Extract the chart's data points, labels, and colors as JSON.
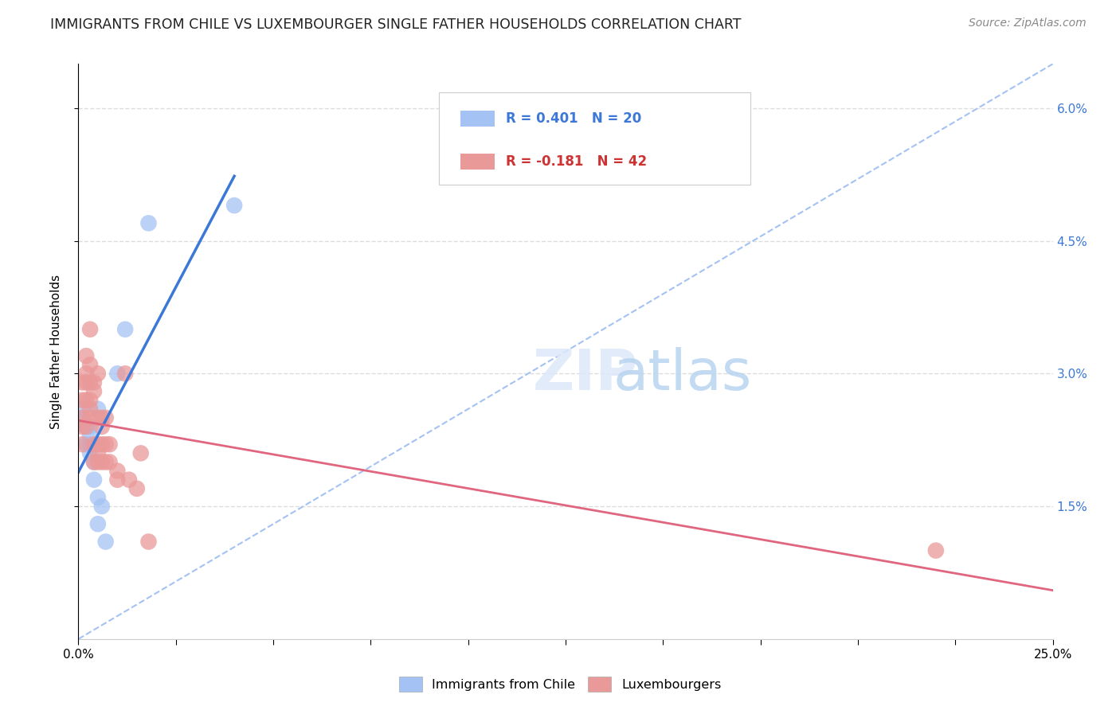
{
  "title": "IMMIGRANTS FROM CHILE VS LUXEMBOURGER SINGLE FATHER HOUSEHOLDS CORRELATION CHART",
  "source": "Source: ZipAtlas.com",
  "ylabel": "Single Father Households",
  "ylabel_right_ticks": [
    "1.5%",
    "3.0%",
    "4.5%",
    "6.0%"
  ],
  "ylabel_right_vals": [
    0.015,
    0.03,
    0.045,
    0.06
  ],
  "legend_blue_r": "R = 0.401",
  "legend_blue_n": "N = 20",
  "legend_pink_r": "R = -0.181",
  "legend_pink_n": "N = 42",
  "legend_label_blue": "Immigrants from Chile",
  "legend_label_pink": "Luxembourgers",
  "blue_color": "#a4c2f4",
  "pink_color": "#ea9999",
  "blue_line_color": "#3c78d8",
  "pink_line_color": "#e06680",
  "diagonal_color": "#a4c2f4",
  "blue_scatter_x": [
    0.001,
    0.001,
    0.002,
    0.002,
    0.002,
    0.003,
    0.003,
    0.003,
    0.003,
    0.004,
    0.004,
    0.005,
    0.005,
    0.005,
    0.006,
    0.007,
    0.01,
    0.012,
    0.018,
    0.04
  ],
  "blue_scatter_y": [
    0.026,
    0.025,
    0.024,
    0.024,
    0.022,
    0.024,
    0.023,
    0.021,
    0.022,
    0.02,
    0.018,
    0.026,
    0.016,
    0.013,
    0.015,
    0.011,
    0.03,
    0.035,
    0.047,
    0.049
  ],
  "pink_scatter_x": [
    0.001,
    0.001,
    0.001,
    0.001,
    0.001,
    0.002,
    0.002,
    0.002,
    0.002,
    0.002,
    0.003,
    0.003,
    0.003,
    0.003,
    0.003,
    0.003,
    0.004,
    0.004,
    0.004,
    0.004,
    0.005,
    0.005,
    0.005,
    0.005,
    0.005,
    0.006,
    0.006,
    0.006,
    0.006,
    0.007,
    0.007,
    0.007,
    0.008,
    0.008,
    0.01,
    0.01,
    0.012,
    0.013,
    0.015,
    0.016,
    0.018,
    0.22
  ],
  "pink_scatter_y": [
    0.029,
    0.027,
    0.025,
    0.024,
    0.022,
    0.032,
    0.03,
    0.029,
    0.027,
    0.024,
    0.035,
    0.031,
    0.029,
    0.027,
    0.026,
    0.025,
    0.029,
    0.028,
    0.022,
    0.02,
    0.03,
    0.025,
    0.022,
    0.021,
    0.02,
    0.025,
    0.024,
    0.022,
    0.02,
    0.025,
    0.022,
    0.02,
    0.022,
    0.02,
    0.019,
    0.018,
    0.03,
    0.018,
    0.017,
    0.021,
    0.011,
    0.01
  ],
  "xmin": 0.0,
  "xmax": 0.25,
  "ymin": 0.0,
  "ymax": 0.065,
  "background_color": "#ffffff",
  "grid_color": "#dddddd"
}
